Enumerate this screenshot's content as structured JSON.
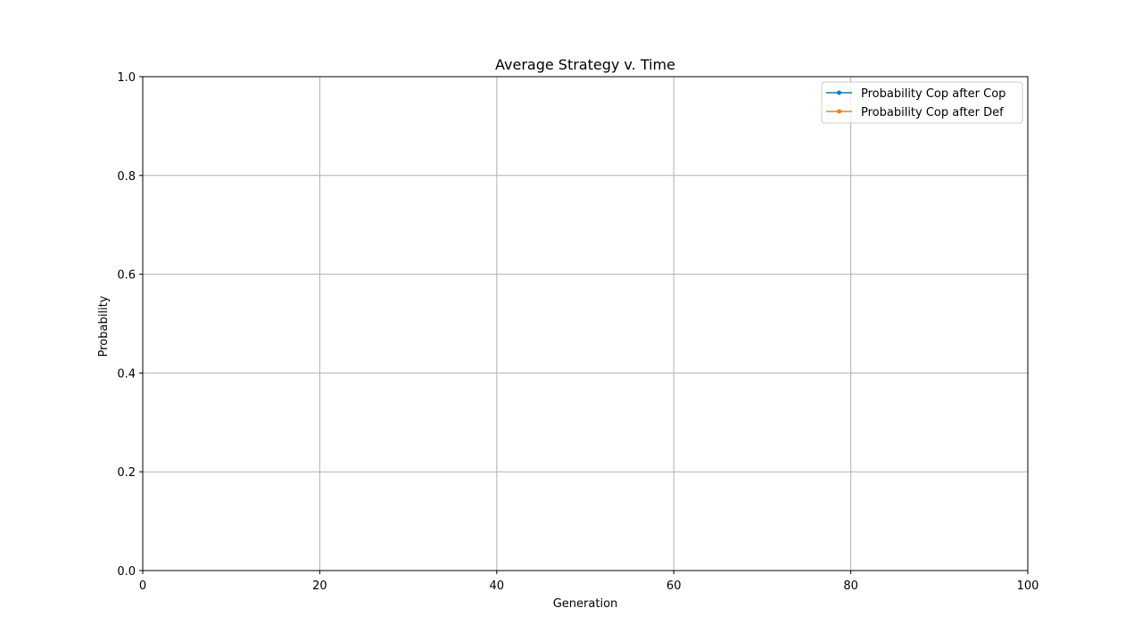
{
  "chart_data": {
    "type": "line",
    "title": "Average Strategy v. Time",
    "xlabel": "Generation",
    "ylabel": "Probability",
    "xlim": [
      0,
      100
    ],
    "ylim": [
      0.0,
      1.0
    ],
    "xticks": [
      0,
      20,
      40,
      60,
      80,
      100
    ],
    "yticks": [
      0.0,
      0.2,
      0.4,
      0.6,
      0.8,
      1.0
    ],
    "xtick_labels": [
      "0",
      "20",
      "40",
      "60",
      "80",
      "100"
    ],
    "ytick_labels": [
      "0.0",
      "0.2",
      "0.4",
      "0.6",
      "0.8",
      "1.0"
    ],
    "grid": true,
    "legend_position": "top-right",
    "series": [
      {
        "name": "Probability Cop after Cop",
        "color": "#1f77b4",
        "marker": "dot",
        "x": [],
        "y": []
      },
      {
        "name": "Probability Cop after Def",
        "color": "#ff7f0e",
        "marker": "dot",
        "x": [],
        "y": []
      }
    ]
  }
}
